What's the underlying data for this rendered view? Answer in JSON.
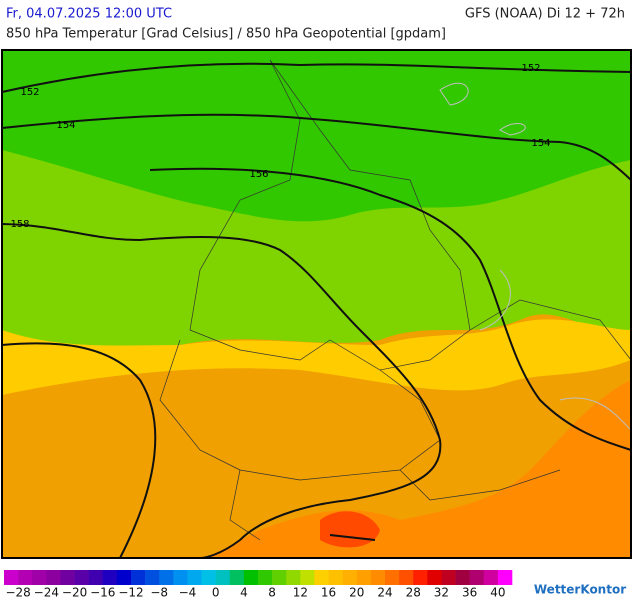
{
  "header": {
    "datetime": "Fr, 04.07.2025 12:00 UTC",
    "model": "GFS (NOAA) Di 12 + 72h",
    "title": "850 hPa Temperatur [Grad Celsius] / 850 hPa Geopotential [gpdam]"
  },
  "contour_labels": [
    152,
    152,
    154,
    154,
    156,
    158
  ],
  "colorbar": {
    "colors": [
      "#cc00cc",
      "#b300b3",
      "#a000a8",
      "#8c00a0",
      "#7000a0",
      "#5a00a8",
      "#4000b0",
      "#2000c0",
      "#0000cc",
      "#0030d8",
      "#0050e0",
      "#0070e8",
      "#0090f0",
      "#00a8f0",
      "#00c0e8",
      "#00c0c0",
      "#00c060",
      "#00c000",
      "#30c800",
      "#60d000",
      "#90d800",
      "#c0e000",
      "#ffd000",
      "#ffc000",
      "#ffb000",
      "#ffa000",
      "#ff8c00",
      "#ff7000",
      "#ff5000",
      "#ff2000",
      "#e00000",
      "#c00020",
      "#a00040",
      "#b00070",
      "#d000a0",
      "#ff00ff"
    ],
    "labels": [
      "−28",
      "−24",
      "−20",
      "−16",
      "−12",
      "−8",
      "−4",
      "0",
      "4",
      "8",
      "12",
      "16",
      "20",
      "24",
      "28",
      "32",
      "36",
      "40"
    ]
  },
  "brand": "WetterKontor"
}
